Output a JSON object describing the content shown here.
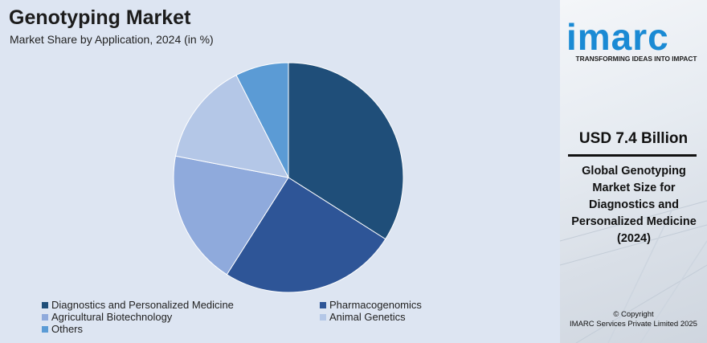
{
  "header": {
    "title": "Genotyping Market",
    "subtitle": "Market Share by Application, 2024 (in %)"
  },
  "chart_data": {
    "type": "pie",
    "title": "Genotyping Market",
    "subtitle": "Market Share by Application, 2024 (in %)",
    "categories": [
      "Diagnostics and Personalized Medicine",
      "Pharmacogenomics",
      "Agricultural Biotechnology",
      "Animal Genetics",
      "Others"
    ],
    "values": [
      34,
      25,
      19,
      14.5,
      7.5
    ],
    "colors": [
      "#1f4e79",
      "#2e5597",
      "#8faadc",
      "#b4c7e7",
      "#5b9bd5"
    ],
    "legend_position": "bottom"
  },
  "sidebar": {
    "logo_text": "imarc",
    "tagline": "TRANSFORMING IDEAS INTO IMPACT",
    "market_value": "USD 7.4 Billion",
    "market_description": "Global Genotyping Market Size for Diagnostics and Personalized Medicine (2024)",
    "copyright_line1": "© Copyright",
    "copyright_line2": "IMARC Services Private Limited 2025",
    "brand_color": "#1a8ad4"
  }
}
